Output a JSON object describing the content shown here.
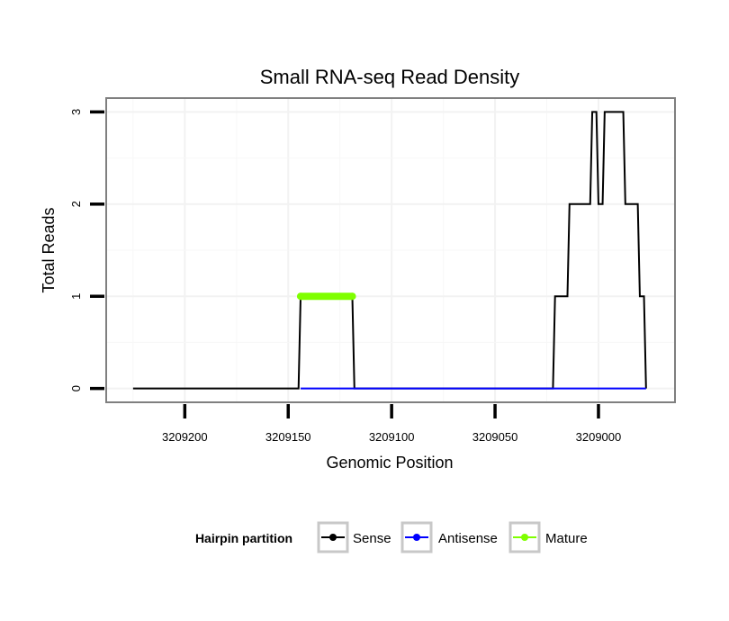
{
  "chart_data": {
    "type": "line",
    "title": "Small RNA-seq Read Density",
    "xlabel": "Genomic Position",
    "ylabel": "Total Reads",
    "xlim": [
      3209238,
      3208963
    ],
    "ylim": [
      -0.15,
      3.15
    ],
    "x_reversed": true,
    "grid": true,
    "x_ticks": [
      3209200,
      3209150,
      3209100,
      3209050,
      3209000
    ],
    "x_tick_labels": [
      "3209200",
      "3209150",
      "3209100",
      "3209050",
      "3209000"
    ],
    "y_ticks": [
      0,
      1,
      2,
      3
    ],
    "y_tick_labels": [
      "0",
      "1",
      "2",
      "3"
    ],
    "legend": {
      "title": "Hairpin partition",
      "position": "bottom",
      "entries": [
        {
          "name": "Sense",
          "color": "#000000"
        },
        {
          "name": "Antisense",
          "color": "#0000ff"
        },
        {
          "name": "Mature",
          "color": "#7fff00"
        }
      ]
    },
    "series": [
      {
        "name": "Sense",
        "color": "#000000",
        "points": [
          [
            3209225,
            0
          ],
          [
            3209145,
            0
          ],
          [
            3209144,
            1
          ],
          [
            3209119,
            1
          ],
          [
            3209118,
            0
          ],
          [
            3209022,
            0
          ],
          [
            3209021,
            1
          ],
          [
            3209015,
            1
          ],
          [
            3209014,
            2
          ],
          [
            3209004,
            2
          ],
          [
            3209003,
            3
          ],
          [
            3209001,
            3
          ],
          [
            3209000,
            2
          ],
          [
            3208998,
            2
          ],
          [
            3208997,
            3
          ],
          [
            3208988,
            3
          ],
          [
            3208987,
            2
          ],
          [
            3208981,
            2
          ],
          [
            3208980,
            1
          ],
          [
            3208978,
            1
          ],
          [
            3208977,
            0
          ]
        ]
      },
      {
        "name": "Antisense",
        "color": "#0000ff",
        "points": [
          [
            3209144,
            0
          ],
          [
            3209119,
            0
          ],
          [
            3209021,
            0
          ],
          [
            3208977,
            0
          ]
        ]
      },
      {
        "name": "Mature",
        "color": "#7fff00",
        "points": [
          [
            3209144,
            1
          ],
          [
            3209119,
            1
          ]
        ]
      }
    ]
  }
}
